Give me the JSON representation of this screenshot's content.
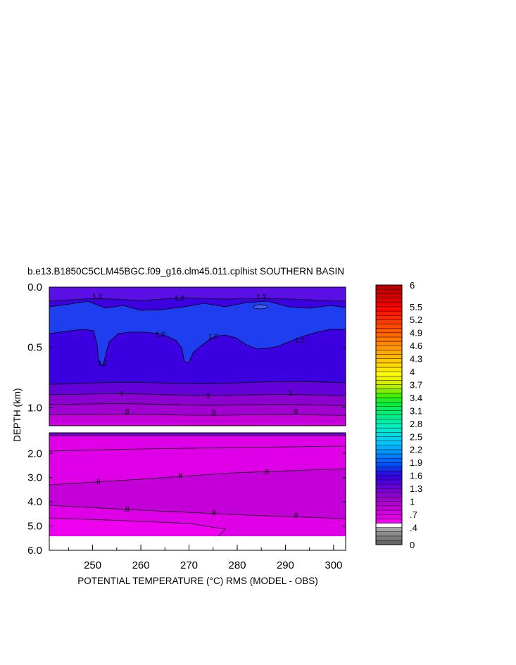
{
  "chart_data": {
    "type": "heatmap",
    "title": "b.e13.B1850C5CLM45BGC.f09_g16.clm45.011.cplhist SOUTHERN BASIN",
    "xlabel": "POTENTIAL TEMPERATURE (°C) RMS (MODEL - OBS)",
    "ylabel": "DEPTH (km)",
    "x_ticks": [
      "250",
      "260",
      "270",
      "280",
      "290",
      "300"
    ],
    "x_tick_values": [
      250,
      260,
      270,
      280,
      290,
      300
    ],
    "xlim": [
      241,
      302.5
    ],
    "upper_panel": {
      "ylim": [
        0.0,
        1.15
      ],
      "y_ticks": [
        "0.0",
        "0.5",
        "1.0"
      ],
      "y_tick_values": [
        0.0,
        0.5,
        1.0
      ]
    },
    "lower_panel": {
      "ylim": [
        1.15,
        6.0
      ],
      "y_ticks": [
        "2.0",
        "3.0",
        "4.0",
        "5.0",
        "6.0"
      ],
      "y_tick_values": [
        2.0,
        3.0,
        4.0,
        5.0,
        6.0
      ]
    },
    "contour_labels": [
      {
        "text": "1.2",
        "x": 251,
        "depth": 0.08
      },
      {
        "text": "1.2",
        "x": 268,
        "depth": 0.09
      },
      {
        "text": "1.2",
        "x": 285,
        "depth": 0.08
      },
      {
        "text": "1.2",
        "x": 264,
        "depth": 0.39
      },
      {
        "text": "1.2",
        "x": 275,
        "depth": 0.41
      },
      {
        "text": "1.2",
        "x": 293,
        "depth": 0.44
      },
      {
        "text": "1.2",
        "x": 252,
        "depth": 0.63
      },
      {
        "text": "1",
        "x": 256,
        "depth": 0.88
      },
      {
        "text": "1",
        "x": 274,
        "depth": 0.9
      },
      {
        "text": "1",
        "x": 291,
        "depth": 0.88
      },
      {
        "text": ".8",
        "x": 257,
        "depth": 1.03
      },
      {
        "text": ".8",
        "x": 275,
        "depth": 1.04
      },
      {
        "text": ".8",
        "x": 292,
        "depth": 1.03
      },
      {
        "text": ".8",
        "x": 251,
        "depth": 3.15
      },
      {
        "text": ".8",
        "x": 268,
        "depth": 2.9
      },
      {
        "text": ".8",
        "x": 286,
        "depth": 2.75
      },
      {
        "text": ".8",
        "x": 257,
        "depth": 4.3
      },
      {
        "text": ".8",
        "x": 275,
        "depth": 4.45
      },
      {
        "text": ".8",
        "x": 292,
        "depth": 4.55
      }
    ],
    "colorbar": {
      "labels": [
        "0",
        ".4",
        ".7",
        "1",
        "1.3",
        "1.6",
        "1.9",
        "2.2",
        "2.5",
        "2.8",
        "3.1",
        "3.4",
        "3.7",
        "4",
        "4.3",
        "4.6",
        "4.9",
        "5.2",
        "5.5",
        "6"
      ],
      "levels": [
        0,
        0.1,
        0.2,
        0.3,
        0.4,
        0.5,
        0.6,
        0.7,
        0.8,
        0.9,
        1.0,
        1.1,
        1.2,
        1.3,
        1.4,
        1.5,
        1.6,
        1.7,
        1.8,
        1.9,
        2.0,
        2.1,
        2.2,
        2.3,
        2.4,
        2.5,
        2.6,
        2.7,
        2.8,
        2.9,
        3.0,
        3.1,
        3.2,
        3.3,
        3.4,
        3.5,
        3.6,
        3.7,
        3.8,
        3.9,
        4.0,
        4.1,
        4.2,
        4.3,
        4.4,
        4.5,
        4.6,
        4.7,
        4.8,
        4.9,
        5.0,
        5.1,
        5.2,
        5.3,
        5.4,
        5.5,
        5.6,
        5.7,
        5.8,
        5.9,
        6.0
      ],
      "colors": [
        "#666666",
        "#7a7a7a",
        "#8d8d8d",
        "#a6a6a6",
        "#ffffff",
        "#f000f0",
        "#e000e8",
        "#d000e0",
        "#c400d8",
        "#b400d4",
        "#a000d0",
        "#8c00d0",
        "#7800d4",
        "#6400d8",
        "#5000dc",
        "#3c00e0",
        "#2810e4",
        "#1430ec",
        "#0050f8",
        "#0068ff",
        "#0080ff",
        "#0098ff",
        "#00b0ff",
        "#00c4ff",
        "#00d4f0",
        "#00e0e0",
        "#00e8d0",
        "#00f0c0",
        "#00f0a8",
        "#00f090",
        "#00f078",
        "#00f060",
        "#00f040",
        "#20f020",
        "#40f000",
        "#80f000",
        "#b0f000",
        "#d8f000",
        "#f0f000",
        "#ffff00",
        "#ffe800",
        "#ffd800",
        "#ffc800",
        "#ffb800",
        "#ffa800",
        "#ff9800",
        "#ff8800",
        "#ff7800",
        "#ff6800",
        "#ff5800",
        "#ff4800",
        "#ff3800",
        "#ff2800",
        "#ff1800",
        "#ff0800",
        "#f00000",
        "#e00000",
        "#d40000",
        "#c80000",
        "#bc0000"
      ]
    },
    "fills": {
      "upper_top": "#5a10e4",
      "upper_mid": "#3c00e0",
      "upper_core": "#1f3ef0",
      "upper_lower": "#6400d8",
      "upper_band1": "#8c00d0",
      "upper_band2": "#a000d0",
      "upper_band3": "#c400d8",
      "upper_bottom": "#d000e0",
      "lower_main": "#e000e8",
      "lower_deep": "#c400d8",
      "lower_bottom": "#f000f0",
      "lower_strip": "#7800d4"
    }
  }
}
